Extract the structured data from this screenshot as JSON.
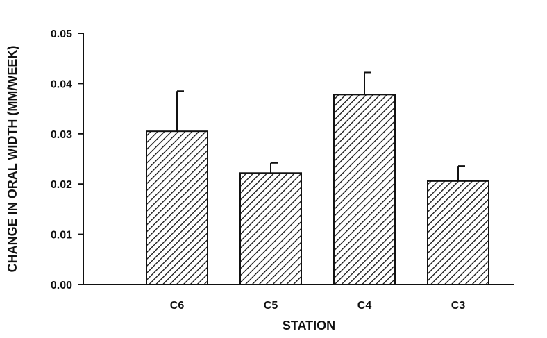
{
  "chart_data": {
    "type": "bar",
    "title": "",
    "xlabel": "STATION",
    "ylabel": "CHANGE IN ORAL WIDTH (MM/WEEK)",
    "categories": [
      "C6",
      "C5",
      "C4",
      "C3"
    ],
    "values": [
      0.0305,
      0.0222,
      0.0378,
      0.0206
    ],
    "error_upper": [
      0.0385,
      0.0242,
      0.0422,
      0.0236
    ],
    "ylim": [
      0,
      0.05
    ],
    "yticks": [
      "0.00",
      "0.01",
      "0.02",
      "0.03",
      "0.04",
      "0.05"
    ],
    "grid": false,
    "legend": "none",
    "bar_fill": "diagonal-hatch",
    "colors": {
      "ink": "#111111",
      "background": "#ffffff"
    }
  }
}
